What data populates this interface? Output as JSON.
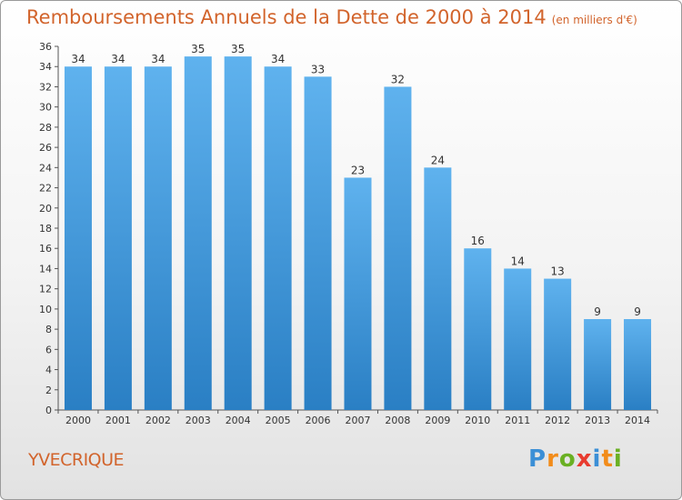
{
  "title": "Remboursements Annuels de la Dette de 2000 à 2014",
  "unit": "(en milliers d'€)",
  "commune": "YVECRIQUE",
  "brand": {
    "letters": [
      "P",
      "r",
      "o",
      "x",
      "i",
      "t",
      "i"
    ],
    "colors": [
      "#3b8fd6",
      "#f28c1a",
      "#6ab023",
      "#e83b2f",
      "#3b8fd6",
      "#f28c1a",
      "#6ab023"
    ]
  },
  "colors": {
    "bar": "#4ea3e0",
    "text": "#d2642c"
  },
  "chart_data": {
    "type": "bar",
    "title": "Remboursements Annuels de la Dette de 2000 à 2014",
    "xlabel": "",
    "ylabel": "",
    "ylim": [
      0,
      36
    ],
    "yticks": [
      0,
      2,
      4,
      6,
      8,
      10,
      12,
      14,
      16,
      18,
      20,
      22,
      24,
      26,
      28,
      30,
      32,
      34,
      36
    ],
    "grid": false,
    "categories": [
      "2000",
      "2001",
      "2002",
      "2003",
      "2004",
      "2005",
      "2006",
      "2007",
      "2008",
      "2009",
      "2010",
      "2011",
      "2012",
      "2013",
      "2014"
    ],
    "values": [
      34,
      34,
      34,
      35,
      35,
      34,
      33,
      23,
      32,
      24,
      16,
      14,
      13,
      9,
      9
    ]
  }
}
